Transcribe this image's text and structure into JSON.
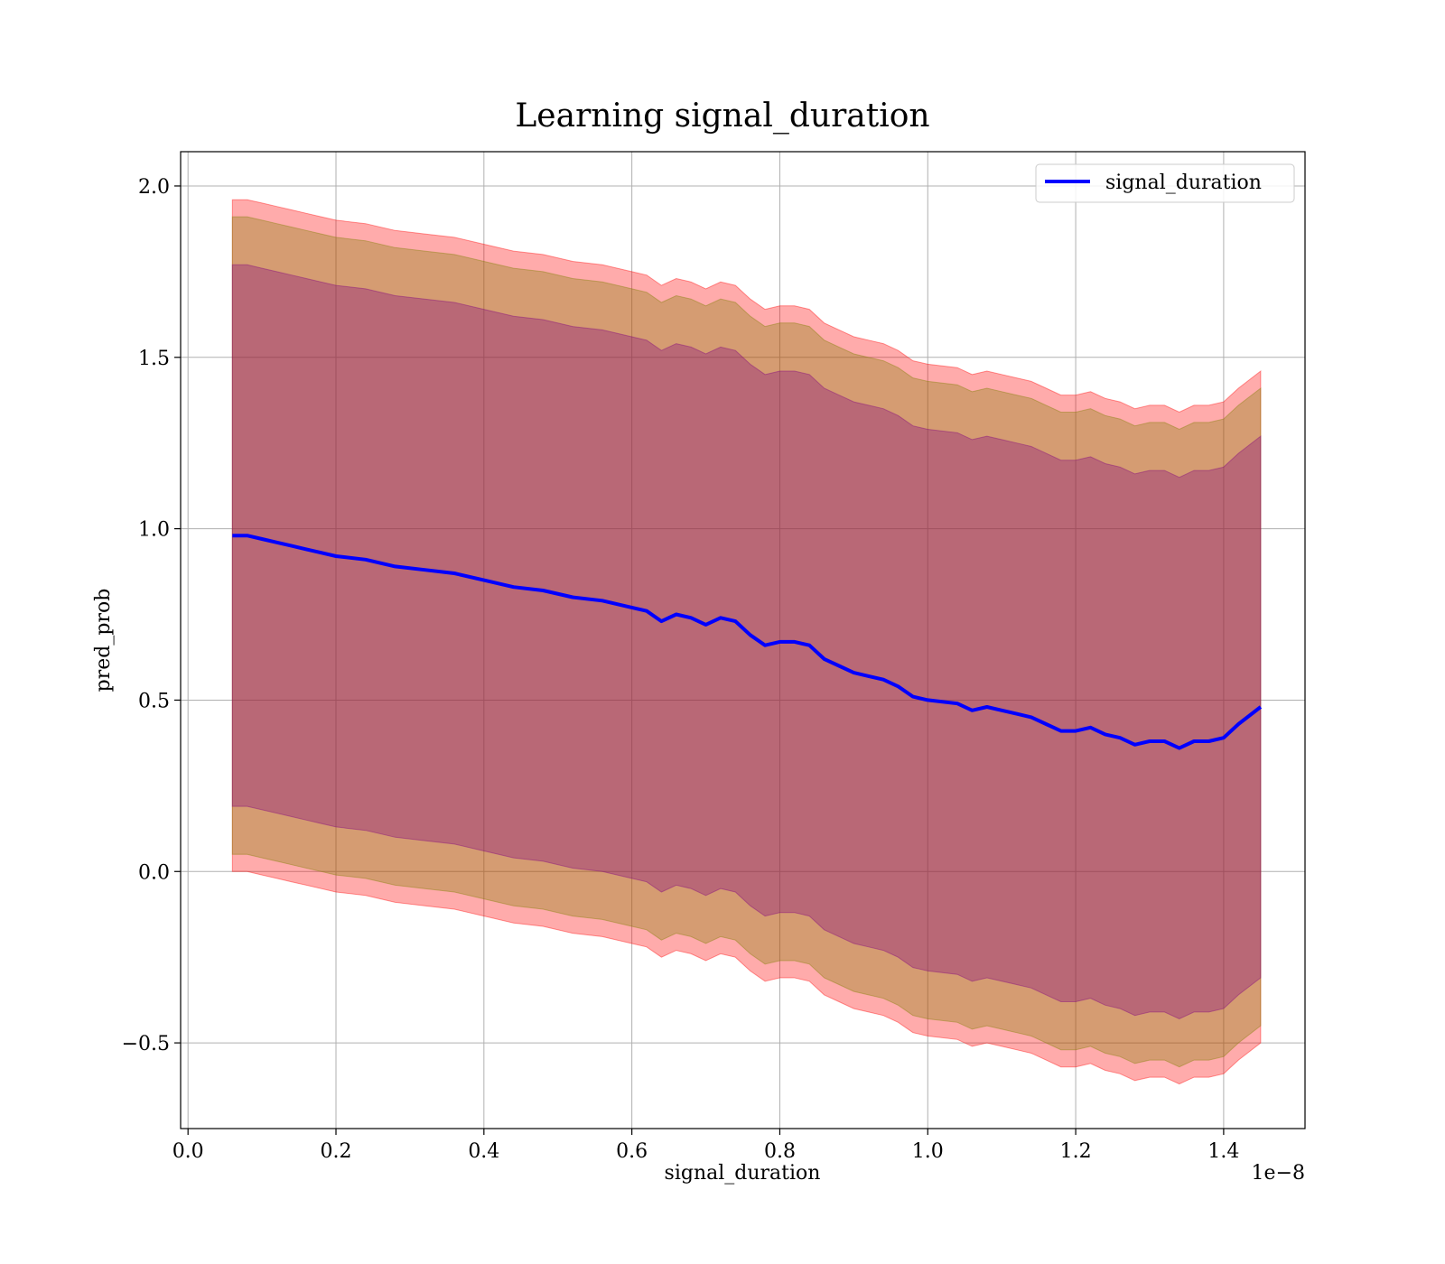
{
  "chart_data": {
    "type": "line",
    "title": "Learning signal_duration",
    "xlabel": "signal_duration",
    "ylabel": "pred_prob",
    "x_offset_label": "1e−8",
    "xlim": [
      -0.01,
      1.51
    ],
    "ylim": [
      -0.75,
      2.1
    ],
    "xticks": [
      0.0,
      0.2,
      0.4,
      0.6,
      0.8,
      1.0,
      1.2,
      1.4
    ],
    "xtick_labels": [
      "0.0",
      "0.2",
      "0.4",
      "0.6",
      "0.8",
      "1.0",
      "1.2",
      "1.4"
    ],
    "yticks": [
      -0.5,
      0.0,
      0.5,
      1.0,
      1.5,
      2.0
    ],
    "ytick_labels": [
      "−0.5",
      "0.0",
      "0.5",
      "1.0",
      "1.5",
      "2.0"
    ],
    "grid": true,
    "legend_position": "top-right",
    "series": [
      {
        "name": "signal_duration",
        "color": "#0000ff",
        "x": [
          0.06,
          0.08,
          0.1,
          0.12,
          0.14,
          0.16,
          0.18,
          0.2,
          0.24,
          0.28,
          0.32,
          0.36,
          0.4,
          0.44,
          0.48,
          0.52,
          0.56,
          0.6,
          0.62,
          0.64,
          0.66,
          0.68,
          0.7,
          0.72,
          0.74,
          0.76,
          0.78,
          0.8,
          0.82,
          0.84,
          0.86,
          0.88,
          0.9,
          0.92,
          0.94,
          0.96,
          0.98,
          1.0,
          1.04,
          1.06,
          1.08,
          1.1,
          1.12,
          1.14,
          1.16,
          1.18,
          1.2,
          1.22,
          1.24,
          1.26,
          1.28,
          1.3,
          1.32,
          1.34,
          1.36,
          1.38,
          1.4,
          1.42,
          1.45
        ],
        "values": [
          0.98,
          0.98,
          0.97,
          0.96,
          0.95,
          0.94,
          0.93,
          0.92,
          0.91,
          0.89,
          0.88,
          0.87,
          0.85,
          0.83,
          0.82,
          0.8,
          0.79,
          0.77,
          0.76,
          0.73,
          0.75,
          0.74,
          0.72,
          0.74,
          0.73,
          0.69,
          0.66,
          0.67,
          0.67,
          0.66,
          0.62,
          0.6,
          0.58,
          0.57,
          0.56,
          0.54,
          0.51,
          0.5,
          0.49,
          0.47,
          0.48,
          0.47,
          0.46,
          0.45,
          0.43,
          0.41,
          0.41,
          0.42,
          0.4,
          0.39,
          0.37,
          0.38,
          0.38,
          0.36,
          0.38,
          0.38,
          0.39,
          0.43,
          0.48
        ]
      }
    ],
    "bands": [
      {
        "color": "#ff0000",
        "opacity": 0.33,
        "offset": 0.98
      },
      {
        "color": "#808000",
        "opacity": 0.33,
        "offset": 0.93
      },
      {
        "color": "#800080",
        "opacity": 0.33,
        "offset": 0.79
      }
    ]
  }
}
